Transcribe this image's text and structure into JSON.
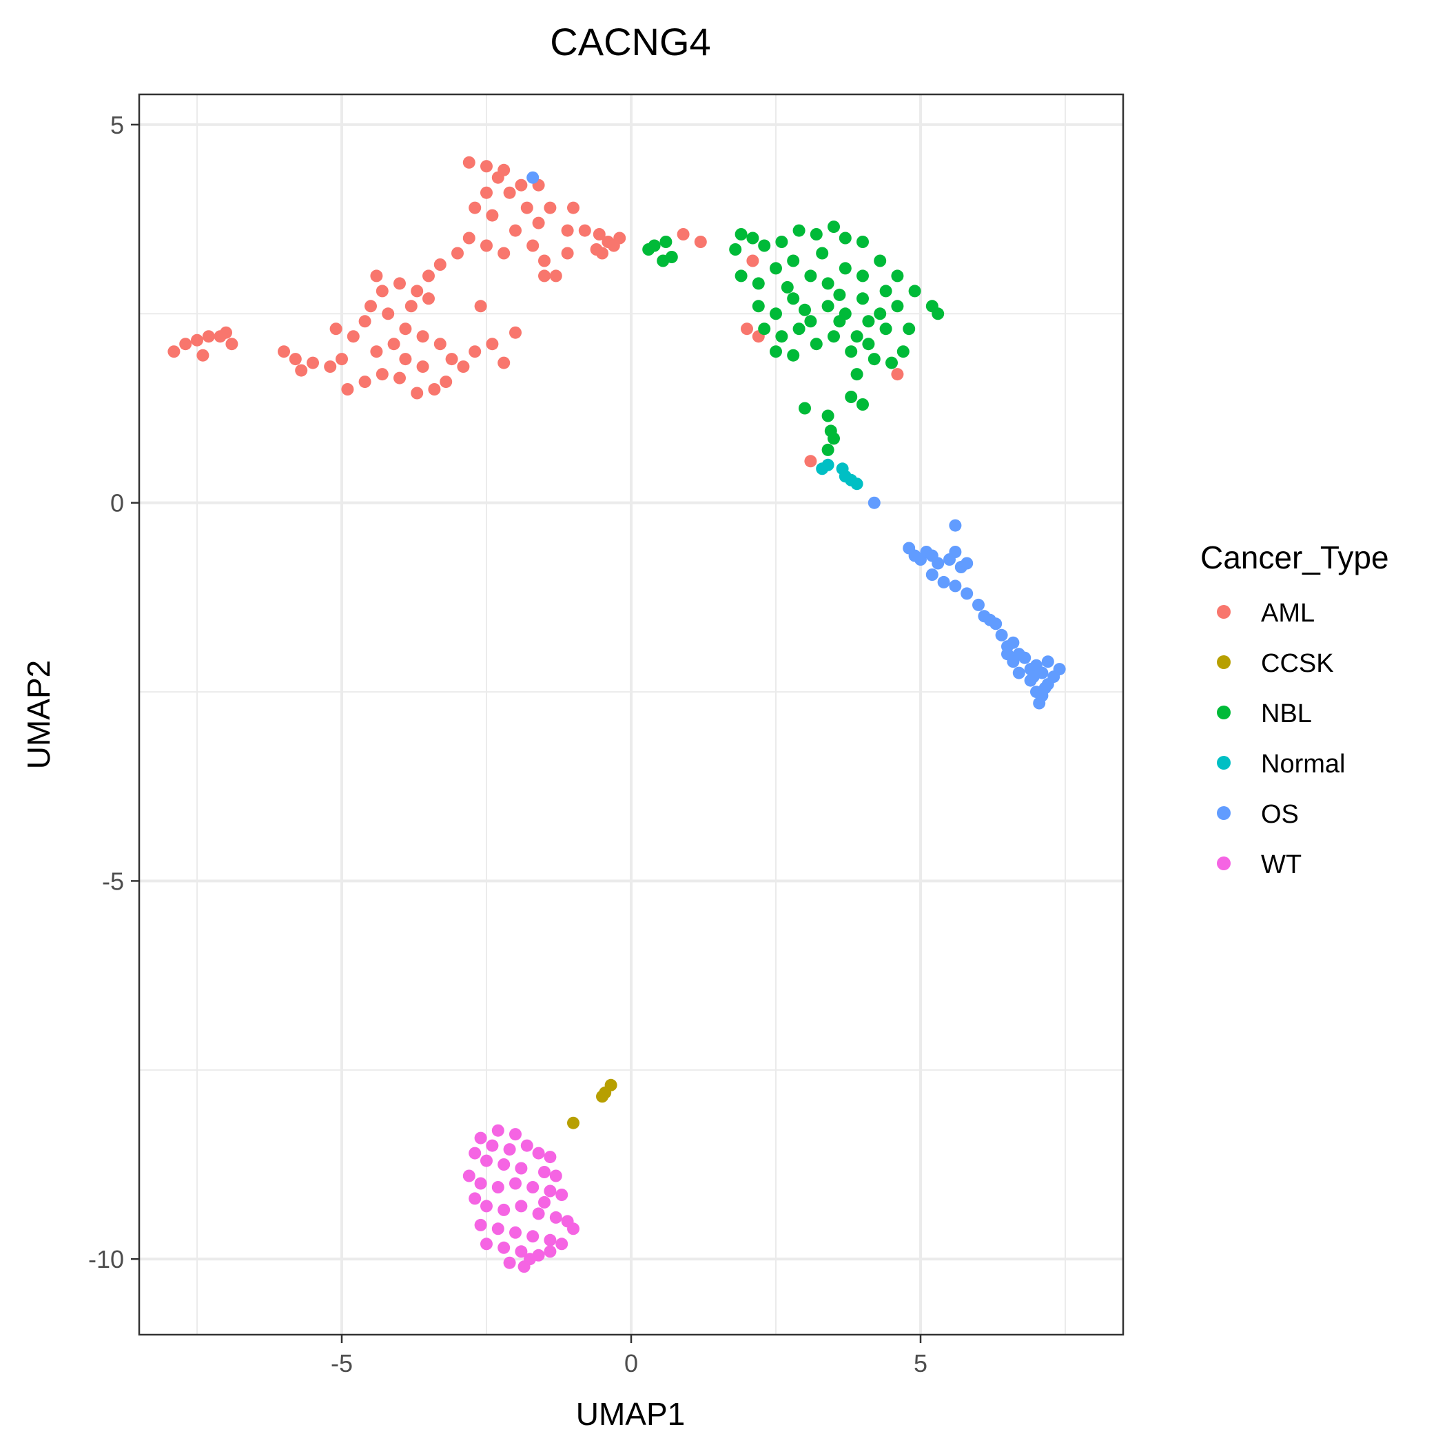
{
  "chart_data": {
    "type": "scatter",
    "title": "CACNG4",
    "xlabel": "UMAP1",
    "ylabel": "UMAP2",
    "xlim": [
      -8.5,
      8.5
    ],
    "ylim": [
      -11.0,
      5.4
    ],
    "xticks": [
      -5,
      0,
      5
    ],
    "yticks": [
      5,
      0,
      -5,
      -10
    ],
    "xtick_labels": [
      "-5",
      "0",
      "5"
    ],
    "ytick_labels": [
      "5",
      "0",
      "-5",
      "-10"
    ],
    "grid": true,
    "legend": {
      "title": "Cancer_Type",
      "position": "right"
    },
    "series": [
      {
        "name": "AML",
        "color": "#F8766D",
        "points": [
          [
            -7.9,
            2.0
          ],
          [
            -7.7,
            2.1
          ],
          [
            -7.5,
            2.15
          ],
          [
            -7.3,
            2.2
          ],
          [
            -7.1,
            2.2
          ],
          [
            -6.9,
            2.1
          ],
          [
            -7.4,
            1.95
          ],
          [
            -7.0,
            2.25
          ],
          [
            -6.0,
            2.0
          ],
          [
            -5.8,
            1.9
          ],
          [
            -5.5,
            1.85
          ],
          [
            -5.2,
            1.8
          ],
          [
            -5.0,
            1.9
          ],
          [
            -5.7,
            1.75
          ],
          [
            -4.9,
            1.5
          ],
          [
            -4.6,
            1.6
          ],
          [
            -4.3,
            1.7
          ],
          [
            -4.0,
            1.65
          ],
          [
            -3.7,
            1.45
          ],
          [
            -3.4,
            1.5
          ],
          [
            -3.2,
            1.6
          ],
          [
            -4.4,
            2.0
          ],
          [
            -4.1,
            2.1
          ],
          [
            -3.9,
            2.3
          ],
          [
            -3.6,
            2.2
          ],
          [
            -3.3,
            2.1
          ],
          [
            -3.1,
            1.9
          ],
          [
            -4.6,
            2.4
          ],
          [
            -4.2,
            2.5
          ],
          [
            -3.8,
            2.6
          ],
          [
            -4.3,
            2.8
          ],
          [
            -4.0,
            2.9
          ],
          [
            -3.7,
            2.8
          ],
          [
            -4.5,
            2.6
          ],
          [
            -3.5,
            2.7
          ],
          [
            -3.9,
            1.9
          ],
          [
            -3.6,
            1.8
          ],
          [
            -4.8,
            2.2
          ],
          [
            -5.1,
            2.3
          ],
          [
            -2.9,
            1.8
          ],
          [
            -2.7,
            2.0
          ],
          [
            -2.4,
            2.1
          ],
          [
            -2.2,
            1.85
          ],
          [
            -2.0,
            2.25
          ],
          [
            -4.4,
            3.0
          ],
          [
            -3.5,
            3.0
          ],
          [
            -3.0,
            3.3
          ],
          [
            -2.8,
            3.5
          ],
          [
            -2.5,
            3.4
          ],
          [
            -2.2,
            3.3
          ],
          [
            -2.6,
            2.6
          ],
          [
            -3.3,
            3.15
          ],
          [
            -2.7,
            3.9
          ],
          [
            -2.5,
            4.1
          ],
          [
            -2.3,
            4.3
          ],
          [
            -2.1,
            4.1
          ],
          [
            -1.9,
            4.2
          ],
          [
            -1.8,
            3.9
          ],
          [
            -1.6,
            3.7
          ],
          [
            -2.4,
            3.8
          ],
          [
            -2.8,
            4.5
          ],
          [
            -2.5,
            4.45
          ],
          [
            -2.2,
            4.4
          ],
          [
            -2.0,
            3.6
          ],
          [
            -1.7,
            3.4
          ],
          [
            -1.5,
            3.2
          ],
          [
            -1.4,
            3.9
          ],
          [
            -1.6,
            4.2
          ],
          [
            -1.3,
            3.0
          ],
          [
            -1.1,
            3.3
          ],
          [
            -1.1,
            3.6
          ],
          [
            -1.0,
            3.9
          ],
          [
            -1.5,
            3.0
          ],
          [
            -0.6,
            3.35
          ],
          [
            -0.4,
            3.45
          ],
          [
            -0.2,
            3.5
          ],
          [
            -0.5,
            3.3
          ],
          [
            -0.3,
            3.4
          ],
          [
            -0.8,
            3.6
          ],
          [
            -0.55,
            3.55
          ],
          [
            0.9,
            3.55
          ],
          [
            1.2,
            3.45
          ],
          [
            2.1,
            3.2
          ],
          [
            2.0,
            2.3
          ],
          [
            2.2,
            2.2
          ],
          [
            3.1,
            0.55
          ],
          [
            4.6,
            1.7
          ]
        ]
      },
      {
        "name": "CCSK",
        "color": "#B79F00",
        "points": [
          [
            -0.35,
            -7.7
          ],
          [
            -0.45,
            -7.8
          ],
          [
            -0.5,
            -7.85
          ],
          [
            -1.0,
            -8.2
          ]
        ]
      },
      {
        "name": "NBL",
        "color": "#00BA38",
        "points": [
          [
            0.4,
            3.4
          ],
          [
            0.6,
            3.45
          ],
          [
            0.55,
            3.2
          ],
          [
            0.7,
            3.25
          ],
          [
            0.3,
            3.35
          ],
          [
            1.8,
            3.35
          ],
          [
            1.9,
            3.55
          ],
          [
            2.1,
            3.5
          ],
          [
            2.3,
            3.4
          ],
          [
            2.6,
            3.45
          ],
          [
            2.9,
            3.6
          ],
          [
            3.2,
            3.55
          ],
          [
            3.5,
            3.65
          ],
          [
            3.7,
            3.5
          ],
          [
            4.0,
            3.45
          ],
          [
            1.9,
            3.0
          ],
          [
            2.2,
            2.9
          ],
          [
            2.5,
            3.1
          ],
          [
            2.8,
            3.2
          ],
          [
            3.1,
            3.0
          ],
          [
            3.4,
            2.9
          ],
          [
            3.7,
            3.1
          ],
          [
            4.0,
            3.0
          ],
          [
            4.3,
            3.2
          ],
          [
            4.6,
            3.0
          ],
          [
            4.9,
            2.8
          ],
          [
            5.2,
            2.6
          ],
          [
            5.3,
            2.5
          ],
          [
            2.2,
            2.6
          ],
          [
            2.5,
            2.5
          ],
          [
            2.8,
            2.7
          ],
          [
            3.1,
            2.4
          ],
          [
            3.4,
            2.6
          ],
          [
            3.7,
            2.5
          ],
          [
            4.0,
            2.7
          ],
          [
            4.3,
            2.5
          ],
          [
            4.6,
            2.6
          ],
          [
            4.8,
            2.3
          ],
          [
            2.3,
            2.3
          ],
          [
            2.6,
            2.2
          ],
          [
            2.9,
            2.3
          ],
          [
            3.2,
            2.1
          ],
          [
            3.5,
            2.2
          ],
          [
            3.8,
            2.0
          ],
          [
            4.1,
            2.1
          ],
          [
            4.4,
            2.3
          ],
          [
            4.7,
            2.0
          ],
          [
            2.5,
            2.0
          ],
          [
            2.8,
            1.95
          ],
          [
            3.6,
            2.4
          ],
          [
            3.9,
            2.2
          ],
          [
            4.2,
            1.9
          ],
          [
            4.5,
            1.85
          ],
          [
            3.9,
            1.7
          ],
          [
            3.8,
            1.4
          ],
          [
            4.0,
            1.3
          ],
          [
            3.0,
            1.25
          ],
          [
            3.4,
            1.15
          ],
          [
            3.45,
            0.95
          ],
          [
            3.5,
            0.85
          ],
          [
            3.4,
            0.7
          ],
          [
            3.3,
            3.3
          ],
          [
            2.7,
            2.85
          ],
          [
            4.4,
            2.8
          ],
          [
            3.0,
            2.55
          ],
          [
            3.6,
            2.75
          ],
          [
            4.1,
            2.4
          ]
        ]
      },
      {
        "name": "Normal",
        "color": "#00BFC4",
        "points": [
          [
            3.3,
            0.45
          ],
          [
            3.4,
            0.5
          ],
          [
            3.65,
            0.45
          ],
          [
            3.7,
            0.35
          ],
          [
            3.8,
            0.3
          ],
          [
            3.9,
            0.25
          ]
        ]
      },
      {
        "name": "OS",
        "color": "#619CFF",
        "points": [
          [
            -1.7,
            4.3
          ],
          [
            4.2,
            0.0
          ],
          [
            5.6,
            -0.3
          ],
          [
            4.8,
            -0.6
          ],
          [
            4.9,
            -0.7
          ],
          [
            5.0,
            -0.75
          ],
          [
            5.1,
            -0.65
          ],
          [
            5.2,
            -0.7
          ],
          [
            5.3,
            -0.8
          ],
          [
            5.5,
            -0.75
          ],
          [
            5.6,
            -0.65
          ],
          [
            5.7,
            -0.85
          ],
          [
            5.8,
            -0.8
          ],
          [
            5.2,
            -0.95
          ],
          [
            5.4,
            -1.05
          ],
          [
            5.6,
            -1.1
          ],
          [
            5.8,
            -1.2
          ],
          [
            6.0,
            -1.35
          ],
          [
            6.1,
            -1.5
          ],
          [
            6.2,
            -1.55
          ],
          [
            6.3,
            -1.6
          ],
          [
            6.4,
            -1.75
          ],
          [
            6.5,
            -1.9
          ],
          [
            6.6,
            -1.85
          ],
          [
            6.7,
            -2.0
          ],
          [
            6.8,
            -2.05
          ],
          [
            6.9,
            -2.2
          ],
          [
            7.0,
            -2.15
          ],
          [
            7.1,
            -2.25
          ],
          [
            7.2,
            -2.1
          ],
          [
            7.3,
            -2.3
          ],
          [
            7.4,
            -2.2
          ],
          [
            7.2,
            -2.4
          ],
          [
            7.0,
            -2.5
          ],
          [
            7.1,
            -2.55
          ],
          [
            7.05,
            -2.65
          ],
          [
            6.9,
            -2.35
          ],
          [
            6.7,
            -2.25
          ],
          [
            6.6,
            -2.1
          ],
          [
            6.5,
            -2.0
          ],
          [
            7.15,
            -2.45
          ],
          [
            6.95,
            -2.3
          ]
        ]
      },
      {
        "name": "WT",
        "color": "#F564E3",
        "points": [
          [
            -2.6,
            -8.4
          ],
          [
            -2.3,
            -8.3
          ],
          [
            -2.0,
            -8.35
          ],
          [
            -1.8,
            -8.5
          ],
          [
            -1.6,
            -8.6
          ],
          [
            -1.4,
            -8.65
          ],
          [
            -2.7,
            -8.6
          ],
          [
            -2.5,
            -8.7
          ],
          [
            -2.2,
            -8.75
          ],
          [
            -1.9,
            -8.8
          ],
          [
            -1.5,
            -8.85
          ],
          [
            -1.3,
            -8.9
          ],
          [
            -2.8,
            -8.9
          ],
          [
            -2.6,
            -9.0
          ],
          [
            -2.3,
            -9.05
          ],
          [
            -2.0,
            -9.0
          ],
          [
            -1.7,
            -9.05
          ],
          [
            -1.4,
            -9.1
          ],
          [
            -1.2,
            -9.15
          ],
          [
            -2.7,
            -9.2
          ],
          [
            -2.5,
            -9.3
          ],
          [
            -2.2,
            -9.35
          ],
          [
            -1.9,
            -9.3
          ],
          [
            -1.6,
            -9.4
          ],
          [
            -1.3,
            -9.45
          ],
          [
            -1.1,
            -9.5
          ],
          [
            -2.6,
            -9.55
          ],
          [
            -2.3,
            -9.6
          ],
          [
            -2.0,
            -9.65
          ],
          [
            -1.7,
            -9.7
          ],
          [
            -1.4,
            -9.75
          ],
          [
            -1.2,
            -9.8
          ],
          [
            -2.5,
            -9.8
          ],
          [
            -2.2,
            -9.85
          ],
          [
            -1.9,
            -9.9
          ],
          [
            -1.6,
            -9.95
          ],
          [
            -1.4,
            -9.9
          ],
          [
            -2.1,
            -10.05
          ],
          [
            -1.85,
            -10.1
          ],
          [
            -1.75,
            -10.0
          ],
          [
            -2.4,
            -8.5
          ],
          [
            -2.1,
            -8.55
          ],
          [
            -1.5,
            -9.25
          ],
          [
            -1.0,
            -9.6
          ]
        ]
      }
    ]
  }
}
